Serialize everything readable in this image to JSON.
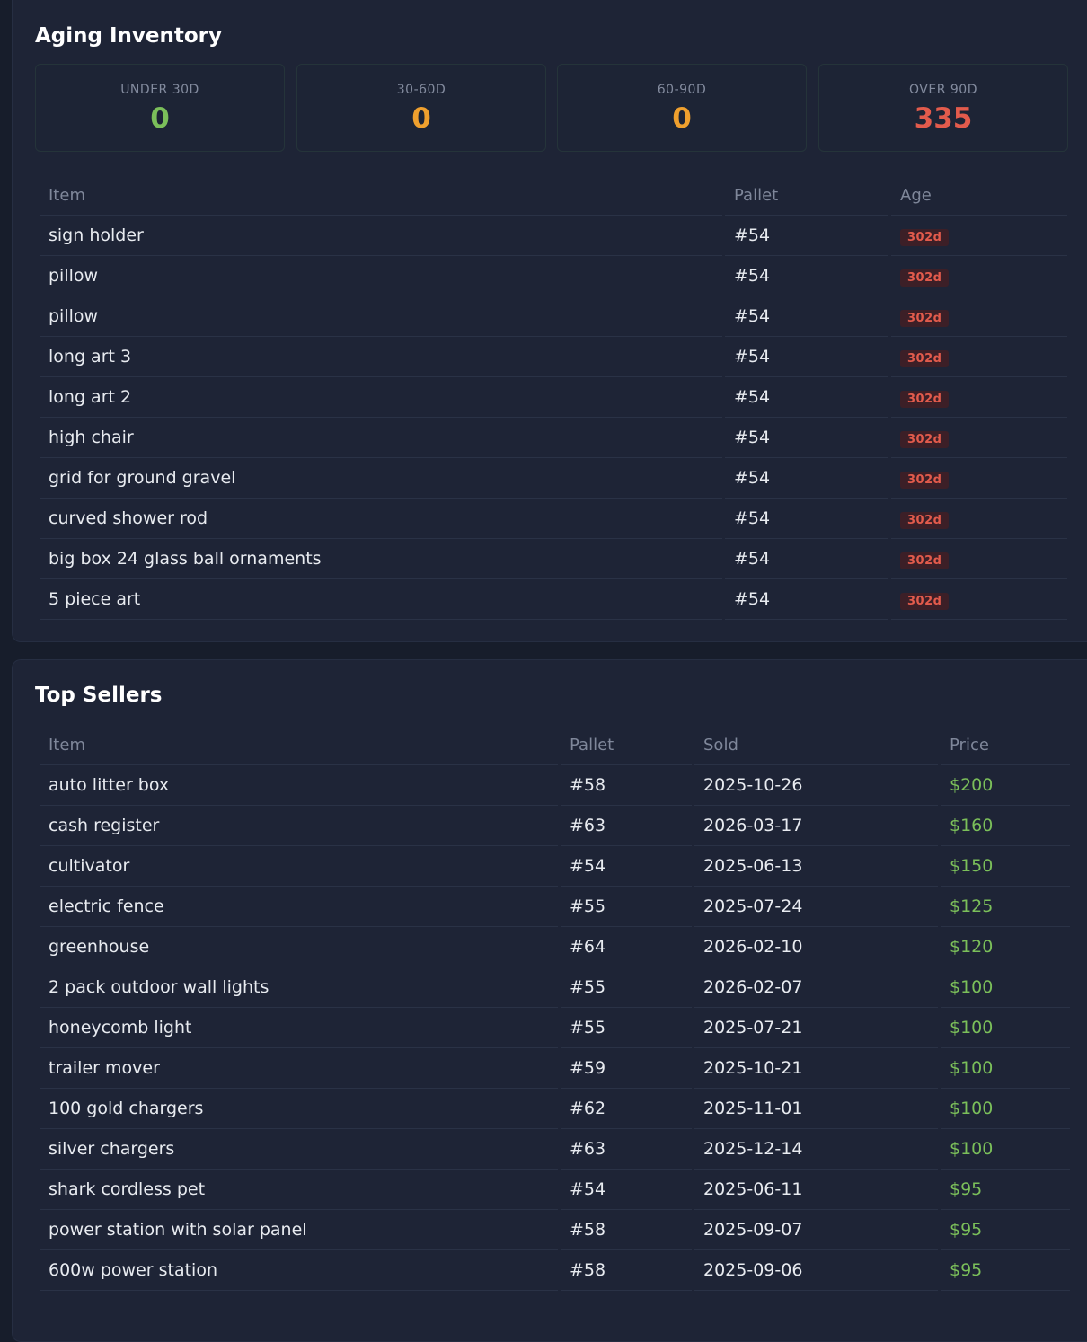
{
  "aging": {
    "title": "Aging Inventory",
    "stats": [
      {
        "label": "UNDER 30D",
        "value": "0",
        "color": "#7bbf5a"
      },
      {
        "label": "30-60D",
        "value": "0",
        "color": "#efa02e"
      },
      {
        "label": "60-90D",
        "value": "0",
        "color": "#efa02e"
      },
      {
        "label": "OVER 90D",
        "value": "335",
        "color": "#e25b4c"
      }
    ],
    "columns": {
      "item": "Item",
      "pallet": "Pallet",
      "age": "Age"
    },
    "rows": [
      {
        "item": "sign holder",
        "pallet": "#54",
        "age": "302d"
      },
      {
        "item": "pillow",
        "pallet": "#54",
        "age": "302d"
      },
      {
        "item": "pillow",
        "pallet": "#54",
        "age": "302d"
      },
      {
        "item": "long art 3",
        "pallet": "#54",
        "age": "302d"
      },
      {
        "item": "long art 2",
        "pallet": "#54",
        "age": "302d"
      },
      {
        "item": "high chair",
        "pallet": "#54",
        "age": "302d"
      },
      {
        "item": "grid for ground gravel",
        "pallet": "#54",
        "age": "302d"
      },
      {
        "item": "curved shower rod",
        "pallet": "#54",
        "age": "302d"
      },
      {
        "item": "big box 24 glass ball ornaments",
        "pallet": "#54",
        "age": "302d"
      },
      {
        "item": "5 piece art",
        "pallet": "#54",
        "age": "302d"
      }
    ]
  },
  "sellers": {
    "title": "Top Sellers",
    "columns": {
      "item": "Item",
      "pallet": "Pallet",
      "sold": "Sold",
      "price": "Price"
    },
    "rows": [
      {
        "item": "auto litter box",
        "pallet": "#58",
        "sold": "2025-10-26",
        "price": "$200"
      },
      {
        "item": "cash register",
        "pallet": "#63",
        "sold": "2026-03-17",
        "price": "$160"
      },
      {
        "item": "cultivator",
        "pallet": "#54",
        "sold": "2025-06-13",
        "price": "$150"
      },
      {
        "item": "electric fence",
        "pallet": "#55",
        "sold": "2025-07-24",
        "price": "$125"
      },
      {
        "item": "greenhouse",
        "pallet": "#64",
        "sold": "2026-02-10",
        "price": "$120"
      },
      {
        "item": "2 pack outdoor wall lights",
        "pallet": "#55",
        "sold": "2026-02-07",
        "price": "$100"
      },
      {
        "item": "honeycomb light",
        "pallet": "#55",
        "sold": "2025-07-21",
        "price": "$100"
      },
      {
        "item": "trailer mover",
        "pallet": "#59",
        "sold": "2025-10-21",
        "price": "$100"
      },
      {
        "item": "100 gold chargers",
        "pallet": "#62",
        "sold": "2025-11-01",
        "price": "$100"
      },
      {
        "item": "silver chargers",
        "pallet": "#63",
        "sold": "2025-12-14",
        "price": "$100"
      },
      {
        "item": "shark cordless pet",
        "pallet": "#54",
        "sold": "2025-06-11",
        "price": "$95"
      },
      {
        "item": "power station with solar panel",
        "pallet": "#58",
        "sold": "2025-09-07",
        "price": "$95"
      },
      {
        "item": "600w power station",
        "pallet": "#58",
        "sold": "2025-09-06",
        "price": "$95"
      }
    ]
  }
}
